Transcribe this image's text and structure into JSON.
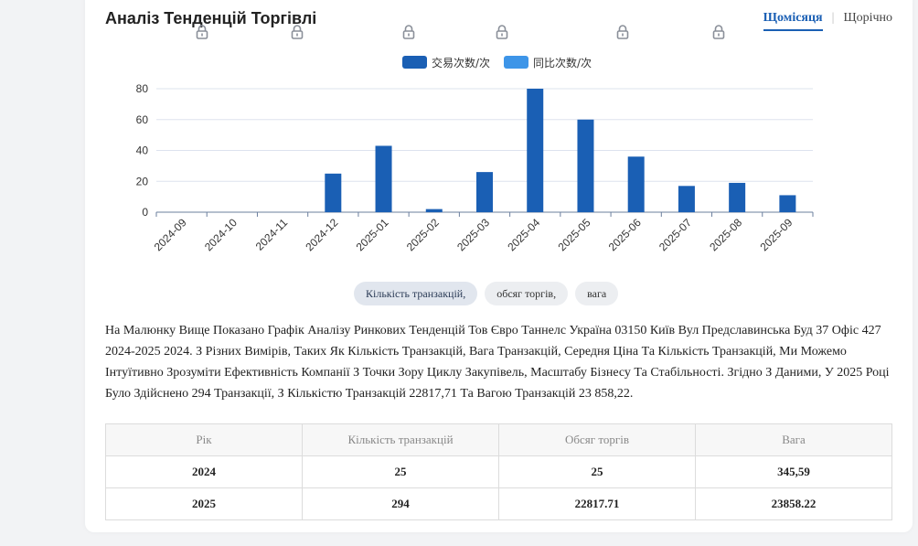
{
  "header": {
    "title": "Аналіз Тенденцій Торгівлі",
    "tabs": [
      {
        "label": "Щомісяця",
        "active": true
      },
      {
        "label": "Щорічно",
        "active": false
      }
    ]
  },
  "chart_data": {
    "type": "bar",
    "categories": [
      "2024-09",
      "2024-10",
      "2024-11",
      "2024-12",
      "2025-01",
      "2025-02",
      "2025-03",
      "2025-04",
      "2025-05",
      "2025-06",
      "2025-07",
      "2025-08",
      "2025-09"
    ],
    "series": [
      {
        "name": "交易次数/次",
        "color": "#1a5fb4",
        "values": [
          0,
          0,
          0,
          25,
          43,
          2,
          26,
          80,
          60,
          36,
          17,
          19,
          11
        ]
      },
      {
        "name": "同比次数/次",
        "color": "#3d95e8",
        "values": [
          0,
          0,
          0,
          0,
          0,
          0,
          0,
          0,
          0,
          0,
          0,
          0,
          0
        ]
      }
    ],
    "ylim": [
      0,
      80
    ],
    "yticks": [
      0,
      20,
      40,
      60,
      80
    ],
    "grid": true,
    "legend": "top-center"
  },
  "metric_chips": [
    {
      "label": "Кількість транзакцій,",
      "selected": true
    },
    {
      "label": "обсяг торгів,",
      "selected": false
    },
    {
      "label": "вага",
      "selected": false
    }
  ],
  "description": "На Малюнку Вище Показано Графік Аналізу Ринкових Тенденцій Тов Євро Таннелс Україна 03150 Київ Вул Предславинська Буд 37 Офіс 427 2024-2025 2024. З Різних Вимірів, Таких Як Кількість Транзакцій, Вага Транзакцій, Середня Ціна Та Кількість Транзакцій, Ми Можемо Інтуїтивно Зрозуміти Ефективність Компанії З Точки Зору Циклу Закупівель, Масштабу Бізнесу Та Стабільності. Згідно З Даними, У 2025 Році Було Здійснено 294 Транзакції, З Кількістю Транзакцій 22817,71 Та Вагою Транзакцій 23 858,22.",
  "table": {
    "headers": [
      "Рік",
      "Кількість транзакцій",
      "Обсяг торгів",
      "Вага"
    ],
    "rows": [
      [
        "2024",
        "25",
        "25",
        "345,59"
      ],
      [
        "2025",
        "294",
        "22817.71",
        "23858.22"
      ]
    ]
  },
  "colors": {
    "accent": "#1a5fb4",
    "bar_primary": "#1a5fb4",
    "bar_secondary": "#3d95e8",
    "lock": "#8a8f99"
  },
  "icons": {
    "lock": "lock-icon"
  }
}
